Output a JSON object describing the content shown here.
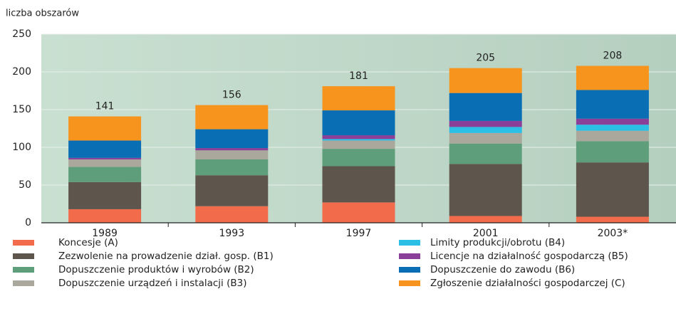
{
  "chart_data": {
    "type": "stacked_bar",
    "y_label": "liczba obszarów",
    "categories": [
      "1989",
      "1993",
      "1997",
      "2001",
      "2003*"
    ],
    "series": [
      {
        "name": "Koncesje (A)",
        "color": "#f26b4b",
        "values": [
          18,
          22,
          27,
          9,
          8
        ]
      },
      {
        "name": "Zezwolenie na prowadzenie dział. gosp. (B1)",
        "color": "#5e554c",
        "values": [
          36,
          41,
          48,
          69,
          72
        ]
      },
      {
        "name": "Dopuszczenie produktów i wyrobów (B2)",
        "color": "#5e9e7a",
        "values": [
          20,
          21,
          23,
          27,
          28
        ]
      },
      {
        "name": "Dopuszczenie urządzeń i instalacji (B3)",
        "color": "#aaa79c",
        "values": [
          10,
          12,
          11,
          14,
          14
        ]
      },
      {
        "name": "Limity produkcji/obrotu (B4)",
        "color": "#2bbfe6",
        "values": [
          0,
          0,
          2,
          8,
          8
        ]
      },
      {
        "name": "Licencje na działalność gospodarczą (B5)",
        "color": "#8a3f98",
        "values": [
          2,
          3,
          5,
          8,
          8
        ]
      },
      {
        "name": "Dopuszczenie do zawodu (B6)",
        "color": "#0a6eb5",
        "values": [
          23,
          25,
          33,
          37,
          38
        ]
      },
      {
        "name": "Zgłoszenie działalności gospodarczej (C)",
        "color": "#f7941d",
        "values": [
          32,
          32,
          32,
          33,
          32
        ]
      }
    ],
    "totals": [
      141,
      156,
      181,
      205,
      208
    ],
    "ylim": [
      0,
      250
    ],
    "yticks": [
      0,
      50,
      100,
      150,
      200,
      250
    ],
    "grid": true
  }
}
